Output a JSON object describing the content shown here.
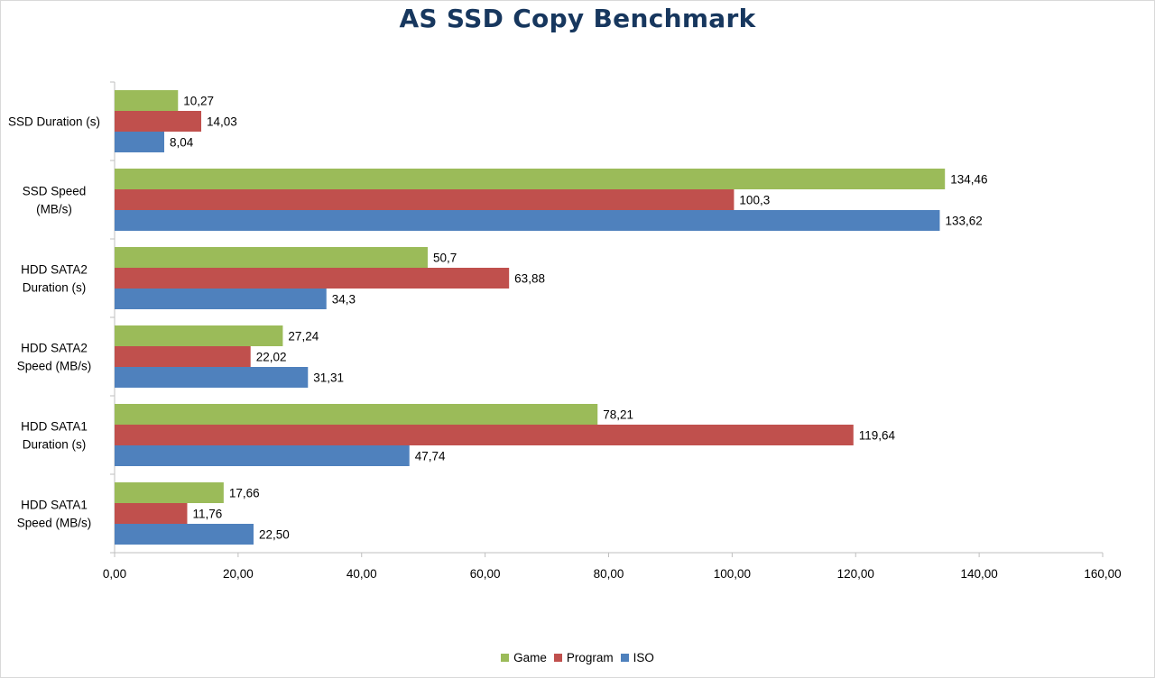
{
  "chart_data": {
    "type": "bar",
    "orientation": "horizontal",
    "title": "AS SSD Copy Benchmark",
    "categories": [
      "SSD Duration (s)",
      "SSD Speed (MB/s)",
      "HDD SATA2 Duration (s)",
      "HDD SATA2 Speed (MB/s)",
      "HDD SATA1 Duration (s)",
      "HDD SATA1 Speed (MB/s)"
    ],
    "category_lines": [
      [
        "SSD Duration (s)"
      ],
      [
        "SSD Speed",
        "(MB/s)"
      ],
      [
        "HDD SATA2",
        "Duration (s)"
      ],
      [
        "HDD SATA2",
        "Speed (MB/s)"
      ],
      [
        "HDD SATA1",
        "Duration (s)"
      ],
      [
        "HDD SATA1",
        "Speed (MB/s)"
      ]
    ],
    "series": [
      {
        "name": "Game",
        "color": "#9bbb59",
        "values": [
          10.27,
          134.46,
          50.7,
          27.24,
          78.21,
          17.66
        ],
        "labels": [
          "10,27",
          "134,46",
          "50,7",
          "27,24",
          "78,21",
          "17,66"
        ]
      },
      {
        "name": "Program",
        "color": "#c0504d",
        "values": [
          14.03,
          100.3,
          63.88,
          22.02,
          119.64,
          11.76
        ],
        "labels": [
          "14,03",
          "100,3",
          "63,88",
          "22,02",
          "119,64",
          "11,76"
        ]
      },
      {
        "name": "ISO",
        "color": "#4f81bd",
        "values": [
          8.04,
          133.62,
          34.3,
          31.31,
          47.74,
          22.5
        ],
        "labels": [
          "8,04",
          "133,62",
          "34,3",
          "31,31",
          "47,74",
          "22,50"
        ]
      }
    ],
    "xlim": [
      0,
      160
    ],
    "x_ticks": [
      0,
      20,
      40,
      60,
      80,
      100,
      120,
      140,
      160
    ],
    "x_tick_labels": [
      "0,00",
      "20,00",
      "40,00",
      "60,00",
      "80,00",
      "100,00",
      "120,00",
      "140,00",
      "160,00"
    ],
    "grid": false,
    "legend_position": "bottom",
    "colors": {
      "title": "#17375e",
      "axis": "#bfbfbf"
    }
  }
}
